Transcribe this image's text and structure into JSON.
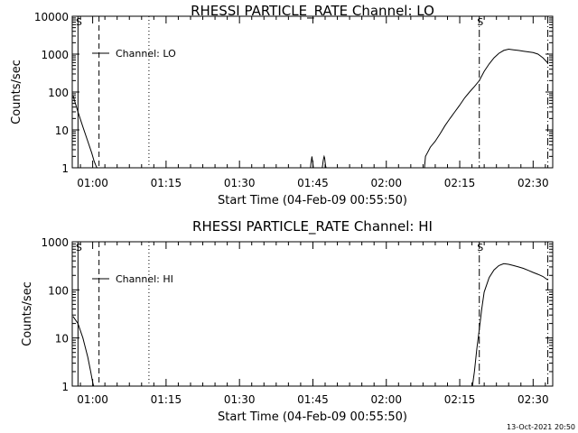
{
  "timestamp": "13-Oct-2021 20:50",
  "chart_data": [
    {
      "type": "line",
      "title": "RHESSI PARTICLE_RATE Channel: LO",
      "xlabel": "Start Time (04-Feb-09 00:55:50)",
      "ylabel": "Counts/sec",
      "y_scale": "log",
      "ylim": [
        1,
        10000
      ],
      "y_ticks": [
        1,
        10,
        100,
        1000,
        10000
      ],
      "y_tick_labels": [
        "1",
        "10",
        "100",
        "1000",
        "10000"
      ],
      "x_tick_labels": [
        "01:00",
        "01:15",
        "01:30",
        "01:45",
        "02:00",
        "02:15",
        "02:30"
      ],
      "x_ticks_min": [
        60,
        75,
        90,
        105,
        120,
        135,
        150
      ],
      "xlim_min": [
        55.83,
        154.0
      ],
      "legend": "Channel: LO",
      "markers": [
        {
          "label": "S",
          "x_min": 57.0,
          "style": "solid"
        },
        {
          "label": "",
          "x_min": 61.3,
          "style": "dashed"
        },
        {
          "label": "",
          "x_min": 71.5,
          "style": "dotted"
        },
        {
          "label": "S",
          "x_min": 139.0,
          "style": "dashdot"
        },
        {
          "label": "",
          "x_min": 153.0,
          "style": "dashdot"
        }
      ],
      "series": [
        {
          "x_min": [
            56.0,
            57.0,
            58.0,
            59.0,
            59.8,
            60.3,
            60.6,
            60.8,
            60.9,
            61.0,
            104.5,
            104.6,
            104.7,
            104.8,
            104.9,
            105.0,
            105.1,
            105.2,
            105.3,
            105.4,
            105.5,
            106.9,
            107.0,
            107.1,
            107.2,
            107.3,
            107.4,
            107.5,
            107.6,
            107.7,
            127.8,
            128.0,
            128.4,
            129.0,
            130.0,
            131.0,
            132.0,
            133.0,
            134.0,
            135.0,
            136.0,
            137.0,
            138.0,
            139.0,
            140.0,
            141.0,
            142.0,
            143.0,
            144.0,
            145.0,
            146.0,
            147.0,
            148.0,
            149.0,
            150.0,
            151.0,
            152.0,
            153.0
          ],
          "y": [
            80,
            30,
            12,
            5,
            2.5,
            1.5,
            1.2,
            1.05,
            1,
            1,
            1,
            1.3,
            1.6,
            2,
            1.6,
            1.3,
            1,
            1,
            1,
            1,
            1,
            1,
            1.2,
            1.5,
            1.8,
            2,
            1.8,
            1.4,
            1.1,
            1,
            1,
            2,
            2.5,
            3.5,
            5,
            8,
            13,
            20,
            30,
            45,
            70,
            100,
            140,
            200,
            350,
            550,
            800,
            1050,
            1250,
            1350,
            1300,
            1250,
            1200,
            1150,
            1100,
            1000,
            800,
            580
          ]
        }
      ]
    },
    {
      "type": "line",
      "title": "RHESSI PARTICLE_RATE Channel: HI",
      "xlabel": "Start Time (04-Feb-09 00:55:50)",
      "ylabel": "Counts/sec",
      "y_scale": "log",
      "ylim": [
        1,
        1000
      ],
      "y_ticks": [
        1,
        10,
        100,
        1000
      ],
      "y_tick_labels": [
        "1",
        "10",
        "100",
        "1000"
      ],
      "x_tick_labels": [
        "01:00",
        "01:15",
        "01:30",
        "01:45",
        "02:00",
        "02:15",
        "02:30"
      ],
      "x_ticks_min": [
        60,
        75,
        90,
        105,
        120,
        135,
        150
      ],
      "xlim_min": [
        55.83,
        154.0
      ],
      "legend": "Channel: HI",
      "markers": [
        {
          "label": "S",
          "x_min": 57.0,
          "style": "solid"
        },
        {
          "label": "",
          "x_min": 61.3,
          "style": "dashed"
        },
        {
          "label": "",
          "x_min": 71.5,
          "style": "dotted"
        },
        {
          "label": "S",
          "x_min": 139.0,
          "style": "dashdot"
        },
        {
          "label": "",
          "x_min": 153.0,
          "style": "dashdot"
        }
      ],
      "series": [
        {
          "x_min": [
            56.0,
            57.0,
            58.0,
            59.0,
            59.6,
            60.0,
            60.2,
            137.6,
            138.0,
            138.5,
            139.0,
            139.5,
            140.0,
            141.0,
            142.0,
            143.0,
            144.0,
            145.0,
            146.0,
            147.0,
            148.0,
            149.0,
            150.0,
            151.0,
            152.0,
            153.0
          ],
          "y": [
            28,
            20,
            10,
            4,
            2,
            1.2,
            1,
            1,
            2,
            6,
            15,
            40,
            90,
            180,
            260,
            320,
            350,
            340,
            320,
            300,
            280,
            255,
            230,
            210,
            190,
            160
          ]
        }
      ]
    }
  ]
}
